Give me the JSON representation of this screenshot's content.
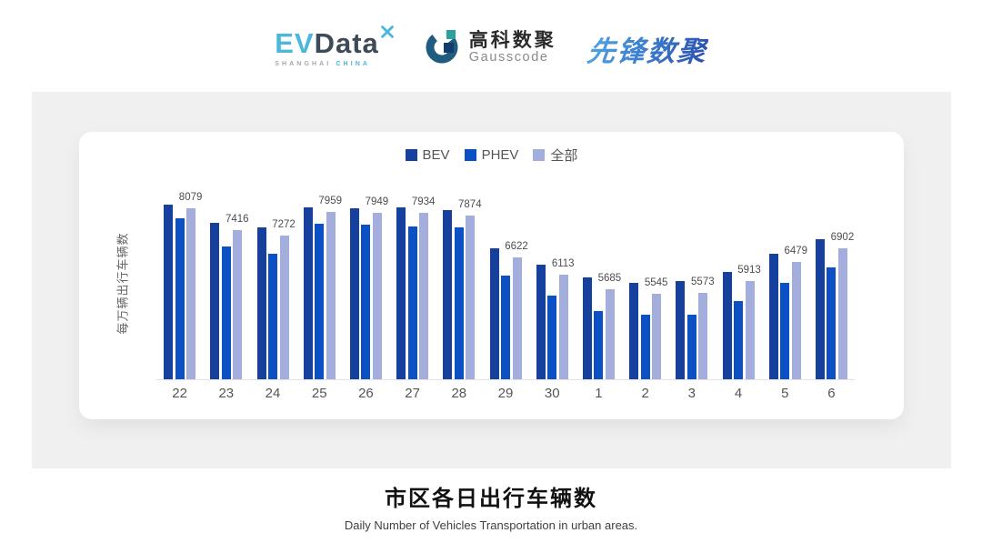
{
  "header": {
    "evdata": {
      "ev": "EV",
      "data": "Data",
      "sub_left": "SHANGHAI",
      "sub_right": "CHINA"
    },
    "gausscode": {
      "cn": "高科数聚",
      "en": "Gausscode"
    },
    "xianfeng": {
      "text": "先锋数聚"
    }
  },
  "chart": {
    "y_axis_title": "每万辆出行车辆数"
  },
  "chart_data": {
    "type": "bar",
    "title": "市区各日出行车辆数",
    "xlabel": "",
    "ylabel": "每万辆出行车辆数",
    "legend_position": "top",
    "grid": false,
    "categories": [
      "22",
      "23",
      "24",
      "25",
      "26",
      "27",
      "28",
      "29",
      "30",
      "1",
      "2",
      "3",
      "4",
      "5",
      "6"
    ],
    "series": [
      {
        "key": "bev",
        "name": "BEV",
        "color": "#15409e",
        "values": [
          8190,
          7635,
          7520,
          8100,
          8080,
          8100,
          8010,
          6900,
          6410,
          6035,
          5875,
          5920,
          6180,
          6740,
          7155
        ],
        "values_estimated": true
      },
      {
        "key": "phev",
        "name": "PHEV",
        "color": "#0b51c5",
        "values": [
          7790,
          6940,
          6740,
          7610,
          7580,
          7550,
          7520,
          6070,
          5490,
          5030,
          4915,
          4920,
          5315,
          5870,
          6320
        ],
        "values_estimated": true
      },
      {
        "key": "all",
        "name": "全部",
        "color": "#a4aedd",
        "values": [
          8079,
          7416,
          7272,
          7959,
          7949,
          7934,
          7874,
          6622,
          6113,
          5685,
          5545,
          5573,
          5913,
          6479,
          6902
        ],
        "labels_shown": true
      }
    ],
    "value_labels": [
      8079,
      7416,
      7272,
      7959,
      7949,
      7934,
      7874,
      6622,
      6113,
      5685,
      5545,
      5573,
      5913,
      6479,
      6902
    ],
    "ylim_implied": [
      3000,
      8750
    ]
  },
  "footer": {
    "title": "市区各日出行车辆数",
    "subtitle": "Daily Number of Vehicles Transportation in urban areas."
  }
}
